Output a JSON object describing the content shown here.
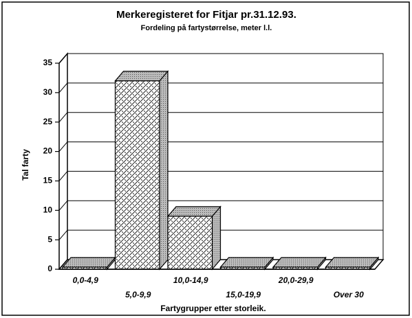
{
  "chart_data": {
    "type": "bar3d",
    "title": "Merkeregisteret for Fitjar pr.31.12.93.",
    "subtitle": "Fordeling på fartystørrelse, meter l.l.",
    "y_label": "Tal farty",
    "x_label": "Fartygrupper etter storleik.",
    "categories": [
      "0,0-4,9",
      "5,0-9,9",
      "10,0-14,9",
      "15,0-19,9",
      "20,0-29,9",
      "Over 30"
    ],
    "values": [
      0,
      32,
      9,
      0,
      0,
      0
    ],
    "ylim": [
      0,
      35
    ],
    "yticks": [
      0,
      5,
      10,
      15,
      20,
      25,
      30,
      35
    ],
    "grid": true
  }
}
